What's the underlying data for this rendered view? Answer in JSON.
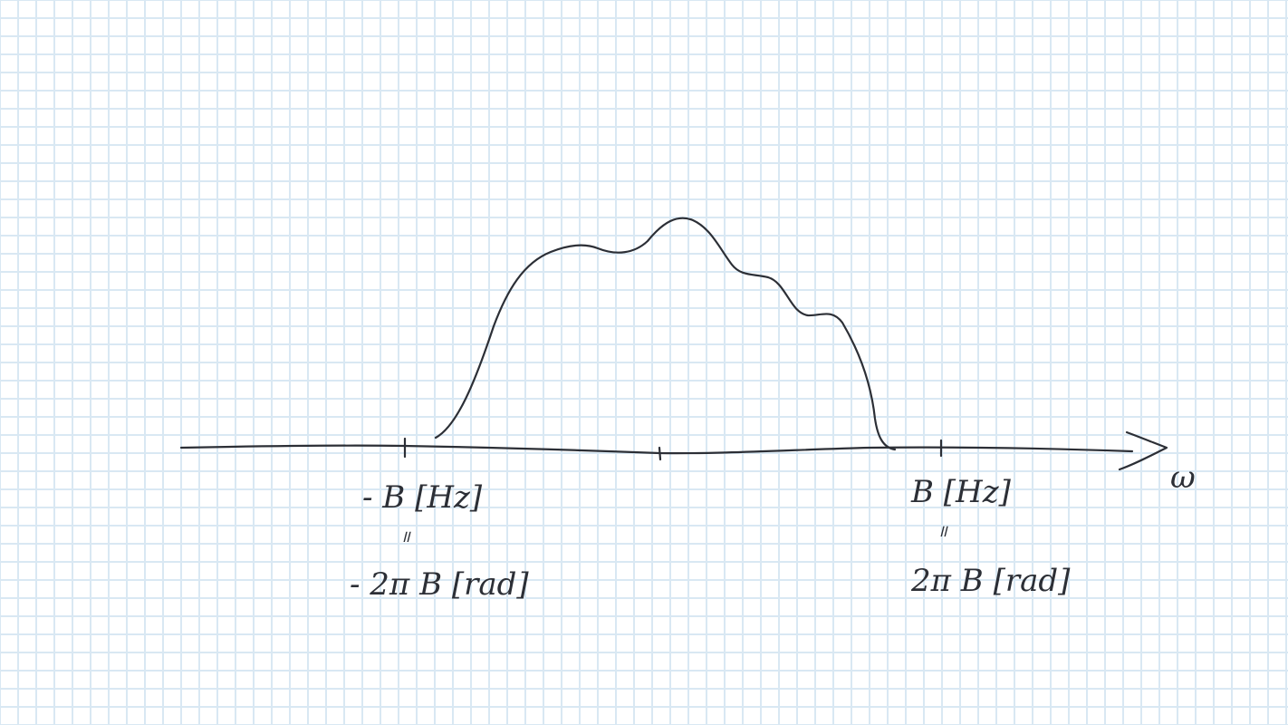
{
  "axis": {
    "variable_label": "ω"
  },
  "ticks": {
    "left": {
      "hz_label": "- B [Hz]",
      "equals": "॥",
      "rad_label": "- 2π B [rad]"
    },
    "right": {
      "hz_label": "B [Hz]",
      "equals": "॥",
      "rad_label": "2π B [rad]"
    }
  },
  "colors": {
    "grid": "#d9e8f3",
    "ink": "#2c2f36",
    "paper": "#ffffff"
  }
}
